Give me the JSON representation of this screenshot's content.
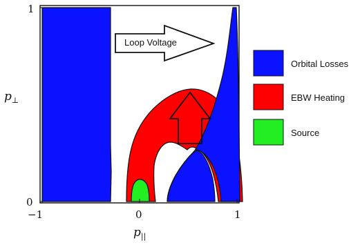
{
  "plot": {
    "x_axis": {
      "label_base": "p",
      "label_sub": "||",
      "ticks": [
        {
          "value": -1,
          "label": "−1"
        },
        {
          "value": 0,
          "label": "0"
        },
        {
          "value": 1,
          "label": "1"
        }
      ],
      "range": [
        -1,
        1
      ]
    },
    "y_axis": {
      "label_base": "p",
      "label_sub": "⊥",
      "ticks": [
        {
          "value": 0,
          "label": "0"
        },
        {
          "value": 1,
          "label": "1"
        }
      ],
      "range": [
        0,
        1
      ]
    },
    "arrows": {
      "loop_voltage": "Loop Voltage"
    }
  },
  "legend": {
    "items": [
      {
        "label": "Orbital Losses",
        "color": "#0a12ff"
      },
      {
        "label": "EBW Heating",
        "color": "#ff0000"
      },
      {
        "label": "Source",
        "color": "#22ee22"
      }
    ]
  },
  "colors": {
    "orbital_losses": "#0a12ff",
    "ebw_heating": "#ff0000",
    "source": "#22ee22",
    "outline": "#111111",
    "background": "#ffffff"
  }
}
